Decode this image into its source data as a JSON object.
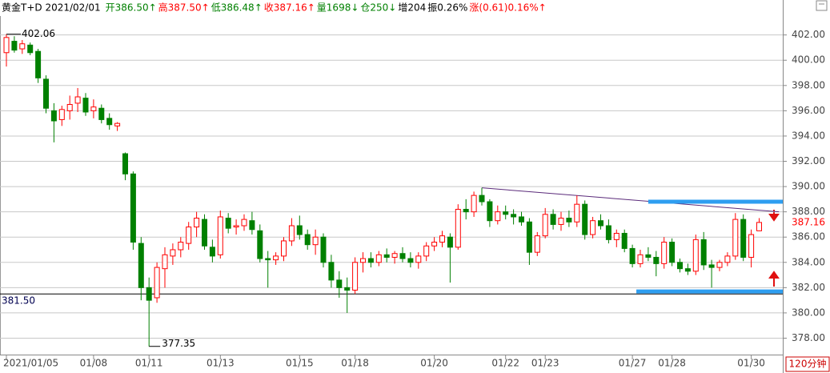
{
  "chart_data": {
    "type": "candlestick",
    "header": [
      {
        "text": "黄金T+D 2021/02/01",
        "color": "#000000"
      },
      {
        "text": "开386.50↑",
        "color": "#008000"
      },
      {
        "text": "高387.50↑",
        "color": "#ff0000"
      },
      {
        "text": "低386.48↑",
        "color": "#008000"
      },
      {
        "text": "收387.16↑",
        "color": "#ff0000"
      },
      {
        "text": "量1698↓",
        "color": "#008000"
      },
      {
        "text": "仓250↓",
        "color": "#008000"
      },
      {
        "text": "增204",
        "color": "#000000"
      },
      {
        "text": "振0.26%",
        "color": "#000000"
      },
      {
        "text": "涨(0.61)0.16%↑",
        "color": "#ff0000"
      }
    ],
    "period": "120分钟",
    "categories": [
      "2021/01/05",
      null,
      null,
      null,
      null,
      null,
      null,
      null,
      null,
      null,
      null,
      "01/08",
      null,
      null,
      null,
      null,
      null,
      null,
      "01/11",
      null,
      null,
      null,
      null,
      null,
      null,
      null,
      null,
      "01/13",
      null,
      null,
      null,
      null,
      null,
      null,
      null,
      null,
      null,
      "01/15",
      null,
      null,
      null,
      null,
      null,
      null,
      "01/18",
      null,
      null,
      null,
      null,
      null,
      null,
      null,
      null,
      null,
      "01/20",
      null,
      null,
      null,
      null,
      null,
      null,
      null,
      null,
      "01/22",
      null,
      null,
      null,
      null,
      "01/23",
      null,
      null,
      null,
      null,
      null,
      null,
      null,
      null,
      null,
      null,
      "01/27",
      null,
      null,
      null,
      null,
      "01/28",
      null,
      null,
      null,
      null,
      null,
      null,
      null,
      null,
      null,
      "01/30",
      null
    ],
    "open": [
      400.6,
      401.5,
      400.9,
      401.2,
      400.7,
      398.5,
      396.0,
      395.3,
      396.0,
      396.6,
      397.0,
      396.0,
      396.2,
      395.4,
      394.8,
      392.6,
      391.0,
      385.5,
      382.0,
      381.2,
      383.5,
      384.5,
      385.0,
      385.5,
      386.8,
      387.4,
      385.2,
      384.6,
      387.5,
      386.8,
      386.9,
      387.3,
      386.5,
      384.3,
      384.2,
      384.5,
      385.7,
      386.9,
      386.2,
      385.4,
      386.0,
      384.0,
      382.6,
      382.0,
      381.8,
      384.0,
      384.3,
      384.0,
      384.6,
      384.4,
      384.7,
      384.3,
      384.0,
      384.5,
      385.3,
      385.6,
      386.0,
      385.2,
      388.2,
      388.0,
      389.3,
      388.8,
      387.3,
      388.0,
      387.8,
      387.6,
      387.2,
      384.8,
      386.1,
      387.8,
      387.0,
      387.5,
      387.2,
      388.6,
      386.2,
      387.3,
      386.9,
      385.8,
      386.3,
      385.1,
      383.9,
      384.6,
      384.4,
      383.9,
      385.6,
      384.0,
      383.5,
      383.3,
      385.8,
      383.8,
      383.6,
      384.0,
      384.5,
      387.4,
      384.4,
      386.5
    ],
    "high": [
      402.06,
      401.9,
      401.6,
      401.4,
      400.9,
      398.8,
      396.6,
      396.4,
      397.2,
      397.8,
      397.4,
      396.9,
      396.5,
      395.8,
      395.1,
      392.7,
      391.2,
      386.0,
      382.8,
      384.0,
      385.2,
      385.5,
      386.0,
      387.2,
      388.0,
      387.8,
      385.8,
      388.1,
      387.9,
      387.4,
      387.8,
      388.0,
      387.0,
      384.9,
      384.8,
      386.0,
      387.5,
      387.7,
      386.6,
      386.6,
      386.3,
      384.6,
      383.3,
      382.8,
      384.4,
      384.8,
      384.8,
      384.9,
      385.1,
      384.9,
      385.2,
      384.8,
      384.8,
      385.6,
      386.0,
      386.5,
      386.3,
      388.6,
      389.0,
      389.6,
      389.9,
      389.0,
      388.5,
      388.5,
      388.2,
      388.0,
      387.5,
      386.4,
      388.3,
      388.2,
      388.0,
      388.1,
      389.3,
      388.9,
      387.6,
      387.8,
      387.4,
      386.6,
      386.6,
      385.4,
      385.0,
      385.2,
      384.9,
      386.0,
      385.9,
      384.3,
      383.9,
      386.2,
      386.4,
      384.2,
      384.2,
      384.8,
      387.9,
      387.8,
      386.6,
      387.5
    ],
    "low": [
      399.5,
      400.6,
      400.5,
      400.4,
      398.2,
      395.8,
      393.5,
      394.8,
      395.3,
      395.9,
      395.6,
      395.4,
      395.0,
      394.5,
      394.4,
      390.5,
      385.0,
      381.0,
      377.35,
      380.8,
      382.0,
      383.8,
      384.4,
      385.0,
      386.0,
      385.0,
      384.0,
      384.3,
      386.3,
      386.2,
      386.5,
      386.2,
      384.0,
      382.0,
      383.8,
      384.1,
      385.3,
      385.8,
      385.0,
      384.6,
      383.6,
      382.0,
      381.2,
      380.0,
      381.5,
      383.2,
      383.6,
      383.7,
      384.0,
      383.9,
      384.0,
      383.6,
      383.5,
      384.1,
      384.9,
      385.2,
      382.4,
      385.0,
      387.4,
      387.6,
      388.5,
      386.8,
      387.0,
      387.4,
      387.0,
      386.9,
      383.8,
      384.5,
      385.9,
      386.6,
      386.5,
      386.8,
      386.8,
      385.8,
      385.9,
      386.6,
      385.5,
      385.2,
      384.8,
      383.6,
      383.6,
      384.1,
      382.9,
      383.5,
      383.7,
      383.2,
      383.0,
      383.0,
      383.4,
      382.0,
      383.3,
      383.7,
      384.2,
      384.1,
      383.6,
      386.48
    ],
    "close": [
      401.8,
      400.8,
      401.3,
      400.6,
      398.6,
      396.2,
      395.2,
      396.1,
      396.5,
      397.1,
      395.9,
      396.3,
      395.3,
      394.9,
      395.0,
      391.0,
      385.6,
      382.0,
      381.0,
      383.6,
      384.6,
      385.0,
      385.6,
      386.8,
      387.5,
      385.3,
      384.5,
      387.6,
      386.7,
      386.9,
      387.4,
      386.6,
      384.3,
      384.2,
      384.5,
      385.7,
      386.9,
      386.2,
      385.4,
      386.0,
      384.0,
      382.6,
      382.0,
      381.8,
      384.0,
      384.3,
      384.0,
      384.6,
      384.4,
      384.7,
      384.3,
      384.0,
      384.5,
      385.3,
      385.6,
      386.1,
      385.2,
      388.2,
      388.0,
      389.3,
      388.8,
      387.3,
      388.0,
      387.8,
      387.6,
      387.2,
      384.8,
      386.1,
      387.8,
      387.0,
      387.5,
      387.2,
      388.6,
      386.2,
      387.3,
      386.9,
      385.8,
      386.3,
      385.1,
      383.9,
      384.6,
      384.4,
      383.9,
      385.6,
      384.0,
      383.5,
      383.3,
      385.8,
      383.8,
      383.6,
      384.0,
      384.5,
      387.4,
      384.4,
      386.2,
      387.16
    ],
    "up_color": "#ff0000",
    "down_color": "#008000",
    "ylim": [
      376.7,
      403.5
    ],
    "yticks": [
      {
        "value": 378,
        "label": "378.00"
      },
      {
        "value": 380,
        "label": "380.00"
      },
      {
        "value": 382,
        "label": "382.00"
      },
      {
        "value": 384,
        "label": "384.00"
      },
      {
        "value": 386,
        "label": "386.00"
      },
      {
        "value": 388,
        "label": "388.00"
      },
      {
        "value": 390,
        "label": "390.00"
      },
      {
        "value": 392,
        "label": "392.00"
      },
      {
        "value": 394,
        "label": "394.00"
      },
      {
        "value": 396,
        "label": "396.00"
      },
      {
        "value": 398,
        "label": "398.00"
      },
      {
        "value": 400,
        "label": "400.00"
      },
      {
        "value": 402,
        "label": "402.00"
      }
    ],
    "grid": true,
    "max_label": 402.06,
    "min_label": 377.35,
    "last_price": 387.16,
    "horizontal_line": {
      "value": 381.5,
      "label": "381.50"
    },
    "trend_line": {
      "x": [
        60,
        97.5
      ],
      "y": [
        389.9,
        388.0
      ]
    },
    "levels": [
      {
        "value": 388.8,
        "from": 81
      },
      {
        "value": 381.7,
        "from": 79.5
      }
    ]
  }
}
